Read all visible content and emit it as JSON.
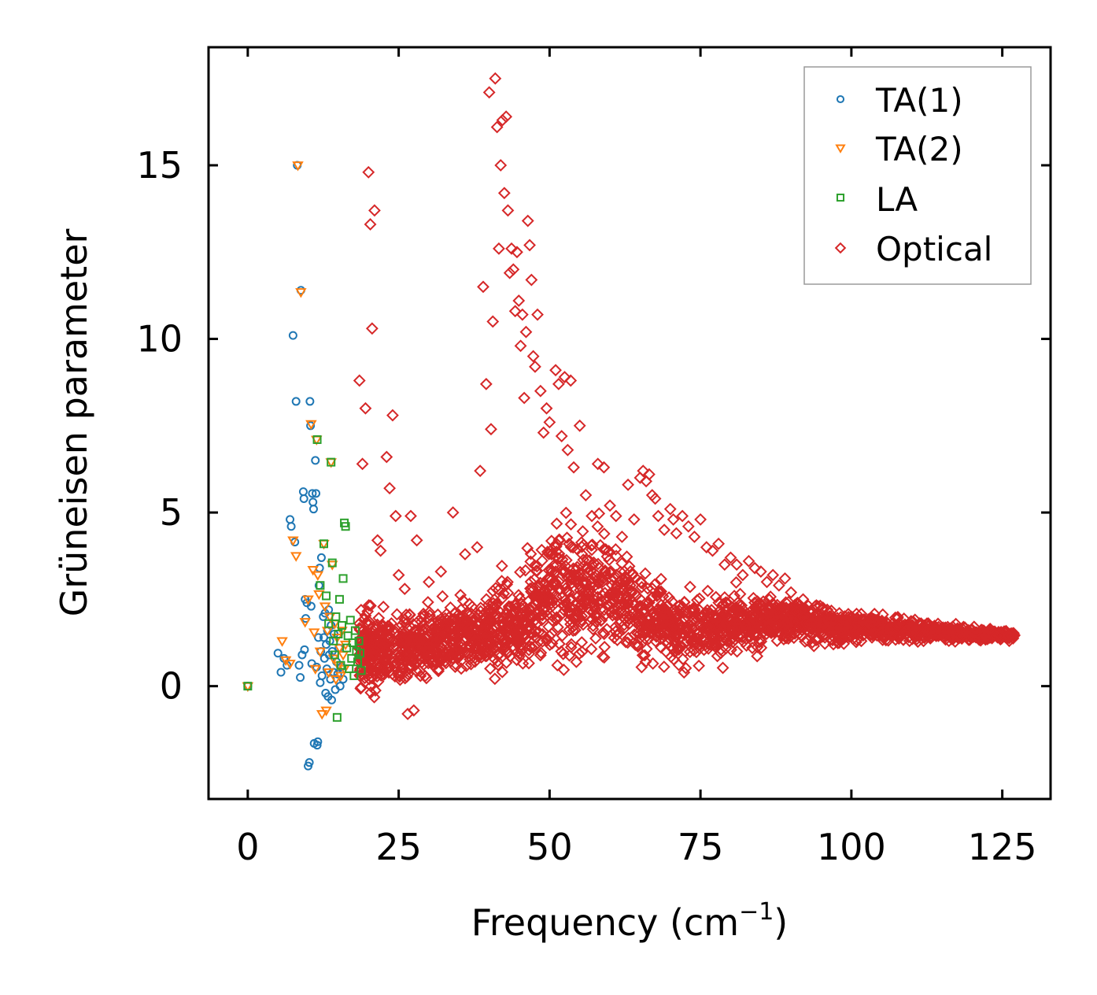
{
  "chart_data": {
    "type": "scatter",
    "title": "",
    "xlabel": "Frequency (cm",
    "xlabel_sup": "−1",
    "xlabel_close": ")",
    "ylabel": "Grüneisen parameter",
    "xlim": [
      -6.5,
      133
    ],
    "ylim": [
      -3.25,
      18.4
    ],
    "xticks": [
      0,
      25,
      50,
      75,
      100,
      125
    ],
    "xtick_labels": [
      "0",
      "25",
      "50",
      "75",
      "100",
      "125"
    ],
    "yticks": [
      0,
      5,
      10,
      15
    ],
    "ytick_labels": [
      "0",
      "5",
      "10",
      "15"
    ],
    "grid": false,
    "legend_position": "top-right",
    "series": [
      {
        "name": "TA(1)",
        "marker": "circle",
        "color": "#1f77b4",
        "points": [
          [
            0,
            0
          ],
          [
            5,
            0.95
          ],
          [
            5.5,
            0.4
          ],
          [
            6,
            0.8
          ],
          [
            6.5,
            0.6
          ],
          [
            7,
            4.8
          ],
          [
            7.2,
            4.6
          ],
          [
            7.5,
            10.1
          ],
          [
            7.8,
            4.15
          ],
          [
            8,
            8.2
          ],
          [
            8.2,
            15
          ],
          [
            8.5,
            0.6
          ],
          [
            8.7,
            0.25
          ],
          [
            8.8,
            11.4
          ],
          [
            9,
            0.9
          ],
          [
            9.2,
            5.6
          ],
          [
            9.3,
            5.4
          ],
          [
            9.4,
            1.05
          ],
          [
            9.5,
            2.5
          ],
          [
            9.6,
            1.95
          ],
          [
            9.8,
            2.4
          ],
          [
            10,
            -2.3
          ],
          [
            10.2,
            -2.2
          ],
          [
            10.3,
            8.2
          ],
          [
            10.4,
            7.5
          ],
          [
            10.5,
            2.3
          ],
          [
            10.6,
            0.65
          ],
          [
            10.7,
            5.55
          ],
          [
            10.8,
            5.3
          ],
          [
            10.9,
            5.1
          ],
          [
            11,
            -1.65
          ],
          [
            11.2,
            6.5
          ],
          [
            11.3,
            5.55
          ],
          [
            11.4,
            0.55
          ],
          [
            11.5,
            -1.7
          ],
          [
            11.6,
            -1.6
          ],
          [
            11.7,
            1.4
          ],
          [
            11.8,
            2.9
          ],
          [
            11.9,
            3.4
          ],
          [
            12,
            0.1
          ],
          [
            12.1,
            1.0
          ],
          [
            12.2,
            3.7
          ],
          [
            12.3,
            0.3
          ],
          [
            12.5,
            2.0
          ],
          [
            12.6,
            1.4
          ],
          [
            12.7,
            0.8
          ],
          [
            12.8,
            2.1
          ],
          [
            12.9,
            -0.2
          ],
          [
            13,
            1.2
          ],
          [
            13.1,
            0.5
          ],
          [
            13.2,
            1.6
          ],
          [
            13.3,
            -0.3
          ],
          [
            13.4,
            2.2
          ],
          [
            13.5,
            0.9
          ],
          [
            13.6,
            1.3
          ],
          [
            13.7,
            0.2
          ],
          [
            13.8,
            1.75
          ],
          [
            13.9,
            -0.4
          ],
          [
            14,
            1.0
          ],
          [
            14.2,
            0.4
          ],
          [
            14.3,
            1.5
          ],
          [
            14.5,
            -0.1
          ],
          [
            14.7,
            0.7
          ],
          [
            14.9,
            0.35
          ],
          [
            15.1,
            1.1
          ],
          [
            15.3,
            0.0
          ],
          [
            15.5,
            0.55
          ],
          [
            15.8,
            0.2
          ]
        ]
      },
      {
        "name": "TA(2)",
        "marker": "triangle_down",
        "color": "#ff7f0e",
        "points": [
          [
            0,
            0
          ],
          [
            5.7,
            1.3
          ],
          [
            6.3,
            0.75
          ],
          [
            7,
            0.65
          ],
          [
            7.5,
            4.2
          ],
          [
            8,
            3.75
          ],
          [
            8.3,
            15
          ],
          [
            8.8,
            11.35
          ],
          [
            9.5,
            1.85
          ],
          [
            10,
            2.5
          ],
          [
            10.5,
            7.55
          ],
          [
            10.8,
            3.35
          ],
          [
            11,
            1.55
          ],
          [
            11.2,
            0.5
          ],
          [
            11.4,
            7.1
          ],
          [
            11.6,
            3.2
          ],
          [
            11.8,
            2.65
          ],
          [
            12,
            1.0
          ],
          [
            12.3,
            -0.8
          ],
          [
            12.6,
            4.1
          ],
          [
            12.8,
            2.3
          ],
          [
            13,
            -0.7
          ],
          [
            13.2,
            1.6
          ],
          [
            13.4,
            0.4
          ],
          [
            13.6,
            2.0
          ],
          [
            13.8,
            6.45
          ],
          [
            14,
            3.5
          ],
          [
            14.2,
            0.8
          ],
          [
            14.4,
            1.8
          ],
          [
            14.6,
            0.2
          ],
          [
            14.8,
            1.4
          ],
          [
            15,
            0.6
          ],
          [
            15.2,
            1.1
          ],
          [
            15.4,
            0.3
          ],
          [
            15.6,
            1.6
          ],
          [
            15.8,
            0.9
          ],
          [
            16,
            0.5
          ],
          [
            16.2,
            1.2
          ]
        ]
      },
      {
        "name": "LA",
        "marker": "square",
        "color": "#2ca02c",
        "points": [
          [
            0,
            0
          ],
          [
            11.5,
            7.1
          ],
          [
            12,
            2.9
          ],
          [
            12.6,
            4.1
          ],
          [
            13,
            2.6
          ],
          [
            13.4,
            1.8
          ],
          [
            13.8,
            6.45
          ],
          [
            14,
            3.55
          ],
          [
            14.2,
            1.3
          ],
          [
            14.4,
            0.9
          ],
          [
            14.6,
            2.0
          ],
          [
            14.8,
            -0.9
          ],
          [
            15,
            1.5
          ],
          [
            15.2,
            2.5
          ],
          [
            15.4,
            0.6
          ],
          [
            15.6,
            1.75
          ],
          [
            15.8,
            3.1
          ],
          [
            16,
            4.7
          ],
          [
            16.2,
            4.6
          ],
          [
            16.4,
            1.1
          ],
          [
            16.6,
            1.45
          ],
          [
            16.8,
            0.5
          ],
          [
            17,
            1.9
          ],
          [
            17.2,
            0.8
          ],
          [
            17.4,
            1.25
          ],
          [
            17.6,
            0.3
          ],
          [
            17.8,
            1.6
          ],
          [
            18,
            1.0
          ],
          [
            18.2,
            0.7
          ],
          [
            18.4,
            1.3
          ],
          [
            18.6,
            0.95
          ],
          [
            18.8,
            0.45
          ]
        ]
      },
      {
        "name": "Optical",
        "marker": "diamond",
        "color": "#d62728",
        "points": [
          [
            18.5,
            8.8
          ],
          [
            19,
            6.4
          ],
          [
            19.5,
            8.0
          ],
          [
            20,
            14.8
          ],
          [
            20.3,
            13.3
          ],
          [
            20.6,
            10.3
          ],
          [
            21,
            13.7
          ],
          [
            21.5,
            4.2
          ],
          [
            22,
            3.9
          ],
          [
            23,
            6.6
          ],
          [
            23.5,
            5.7
          ],
          [
            24,
            7.8
          ],
          [
            24.5,
            4.9
          ],
          [
            25,
            3.2
          ],
          [
            26,
            2.8
          ],
          [
            26.5,
            -0.8
          ],
          [
            27,
            4.9
          ],
          [
            27.5,
            -0.7
          ],
          [
            28,
            4.2
          ],
          [
            30,
            3.0
          ],
          [
            32,
            3.3
          ],
          [
            34,
            5.0
          ],
          [
            36,
            3.8
          ],
          [
            38,
            4.0
          ],
          [
            38.5,
            6.2
          ],
          [
            39,
            11.5
          ],
          [
            39.5,
            8.7
          ],
          [
            40,
            17.1
          ],
          [
            40.3,
            7.4
          ],
          [
            40.6,
            10.5
          ],
          [
            41,
            17.5
          ],
          [
            41.3,
            16.1
          ],
          [
            41.6,
            12.6
          ],
          [
            41.9,
            15.0
          ],
          [
            42.2,
            16.3
          ],
          [
            42.5,
            14.2
          ],
          [
            42.8,
            16.4
          ],
          [
            43.1,
            13.7
          ],
          [
            43.4,
            11.9
          ],
          [
            43.7,
            12.6
          ],
          [
            44,
            12.0
          ],
          [
            44.3,
            10.8
          ],
          [
            44.6,
            12.5
          ],
          [
            44.9,
            11.1
          ],
          [
            45.2,
            9.8
          ],
          [
            45.5,
            10.7
          ],
          [
            45.8,
            8.3
          ],
          [
            46.1,
            10.2
          ],
          [
            46.4,
            13.4
          ],
          [
            46.7,
            12.7
          ],
          [
            47,
            11.7
          ],
          [
            47.3,
            9.5
          ],
          [
            47.6,
            9.2
          ],
          [
            48,
            10.7
          ],
          [
            48.5,
            8.5
          ],
          [
            49,
            7.3
          ],
          [
            49.5,
            8.0
          ],
          [
            50,
            7.6
          ],
          [
            51,
            9.1
          ],
          [
            51.5,
            8.7
          ],
          [
            52,
            7.2
          ],
          [
            52.5,
            8.9
          ],
          [
            53,
            6.8
          ],
          [
            53.5,
            8.8
          ],
          [
            54,
            6.3
          ],
          [
            55,
            7.5
          ],
          [
            56,
            5.5
          ],
          [
            57,
            4.9
          ],
          [
            58,
            6.4
          ],
          [
            59,
            6.3
          ],
          [
            60,
            5.2
          ],
          [
            61,
            4.9
          ],
          [
            62,
            4.3
          ],
          [
            63,
            5.8
          ],
          [
            64,
            4.8
          ],
          [
            65,
            6.0
          ],
          [
            65.5,
            6.2
          ],
          [
            66,
            5.9
          ],
          [
            66.5,
            6.1
          ],
          [
            67,
            5.5
          ],
          [
            67.5,
            5.4
          ],
          [
            68,
            4.9
          ],
          [
            69,
            4.5
          ],
          [
            70,
            5.1
          ],
          [
            70.5,
            4.8
          ],
          [
            71,
            4.4
          ],
          [
            72,
            4.9
          ],
          [
            73,
            4.6
          ],
          [
            74,
            4.3
          ],
          [
            75,
            4.8
          ],
          [
            76,
            4.0
          ],
          [
            77,
            3.9
          ],
          [
            78,
            4.1
          ],
          [
            79,
            3.5
          ],
          [
            80,
            3.7
          ],
          [
            81,
            3.5
          ],
          [
            82,
            3.2
          ],
          [
            83,
            3.6
          ],
          [
            84,
            3.4
          ],
          [
            85,
            3.3
          ],
          [
            86,
            3.0
          ],
          [
            87,
            3.2
          ],
          [
            88,
            2.9
          ],
          [
            89,
            3.1
          ],
          [
            90,
            2.7
          ],
          [
            92,
            2.5
          ],
          [
            94,
            2.3
          ],
          [
            96,
            2.2
          ],
          [
            98,
            2.1
          ],
          [
            100,
            2.0
          ],
          [
            102,
            1.9
          ],
          [
            104,
            1.9
          ],
          [
            106,
            1.8
          ],
          [
            108,
            1.8
          ],
          [
            110,
            1.7
          ],
          [
            112,
            1.7
          ],
          [
            114,
            1.6
          ],
          [
            116,
            1.6
          ],
          [
            118,
            1.55
          ],
          [
            120,
            1.5
          ],
          [
            122,
            1.5
          ],
          [
            124,
            1.45
          ],
          [
            126,
            1.45
          ]
        ]
      }
    ],
    "optical_cloud": {
      "description": "dense band of Optical points",
      "x_start": 18.5,
      "x_end": 127,
      "center_values": [
        [
          18.5,
          1.0
        ],
        [
          25,
          1.1
        ],
        [
          35,
          1.4
        ],
        [
          45,
          1.8
        ],
        [
          52,
          2.8
        ],
        [
          58,
          2.7
        ],
        [
          65,
          2.2
        ],
        [
          72,
          1.6
        ],
        [
          80,
          1.8
        ],
        [
          90,
          1.9
        ],
        [
          100,
          1.7
        ],
        [
          110,
          1.6
        ],
        [
          120,
          1.5
        ],
        [
          127,
          1.45
        ]
      ],
      "spread_values": [
        [
          18.5,
          0.9
        ],
        [
          25,
          0.9
        ],
        [
          35,
          0.8
        ],
        [
          45,
          1.1
        ],
        [
          52,
          1.6
        ],
        [
          58,
          1.5
        ],
        [
          65,
          1.1
        ],
        [
          72,
          0.8
        ],
        [
          80,
          0.8
        ],
        [
          90,
          0.5
        ],
        [
          100,
          0.35
        ],
        [
          110,
          0.25
        ],
        [
          120,
          0.15
        ],
        [
          127,
          0.1
        ]
      ]
    }
  }
}
